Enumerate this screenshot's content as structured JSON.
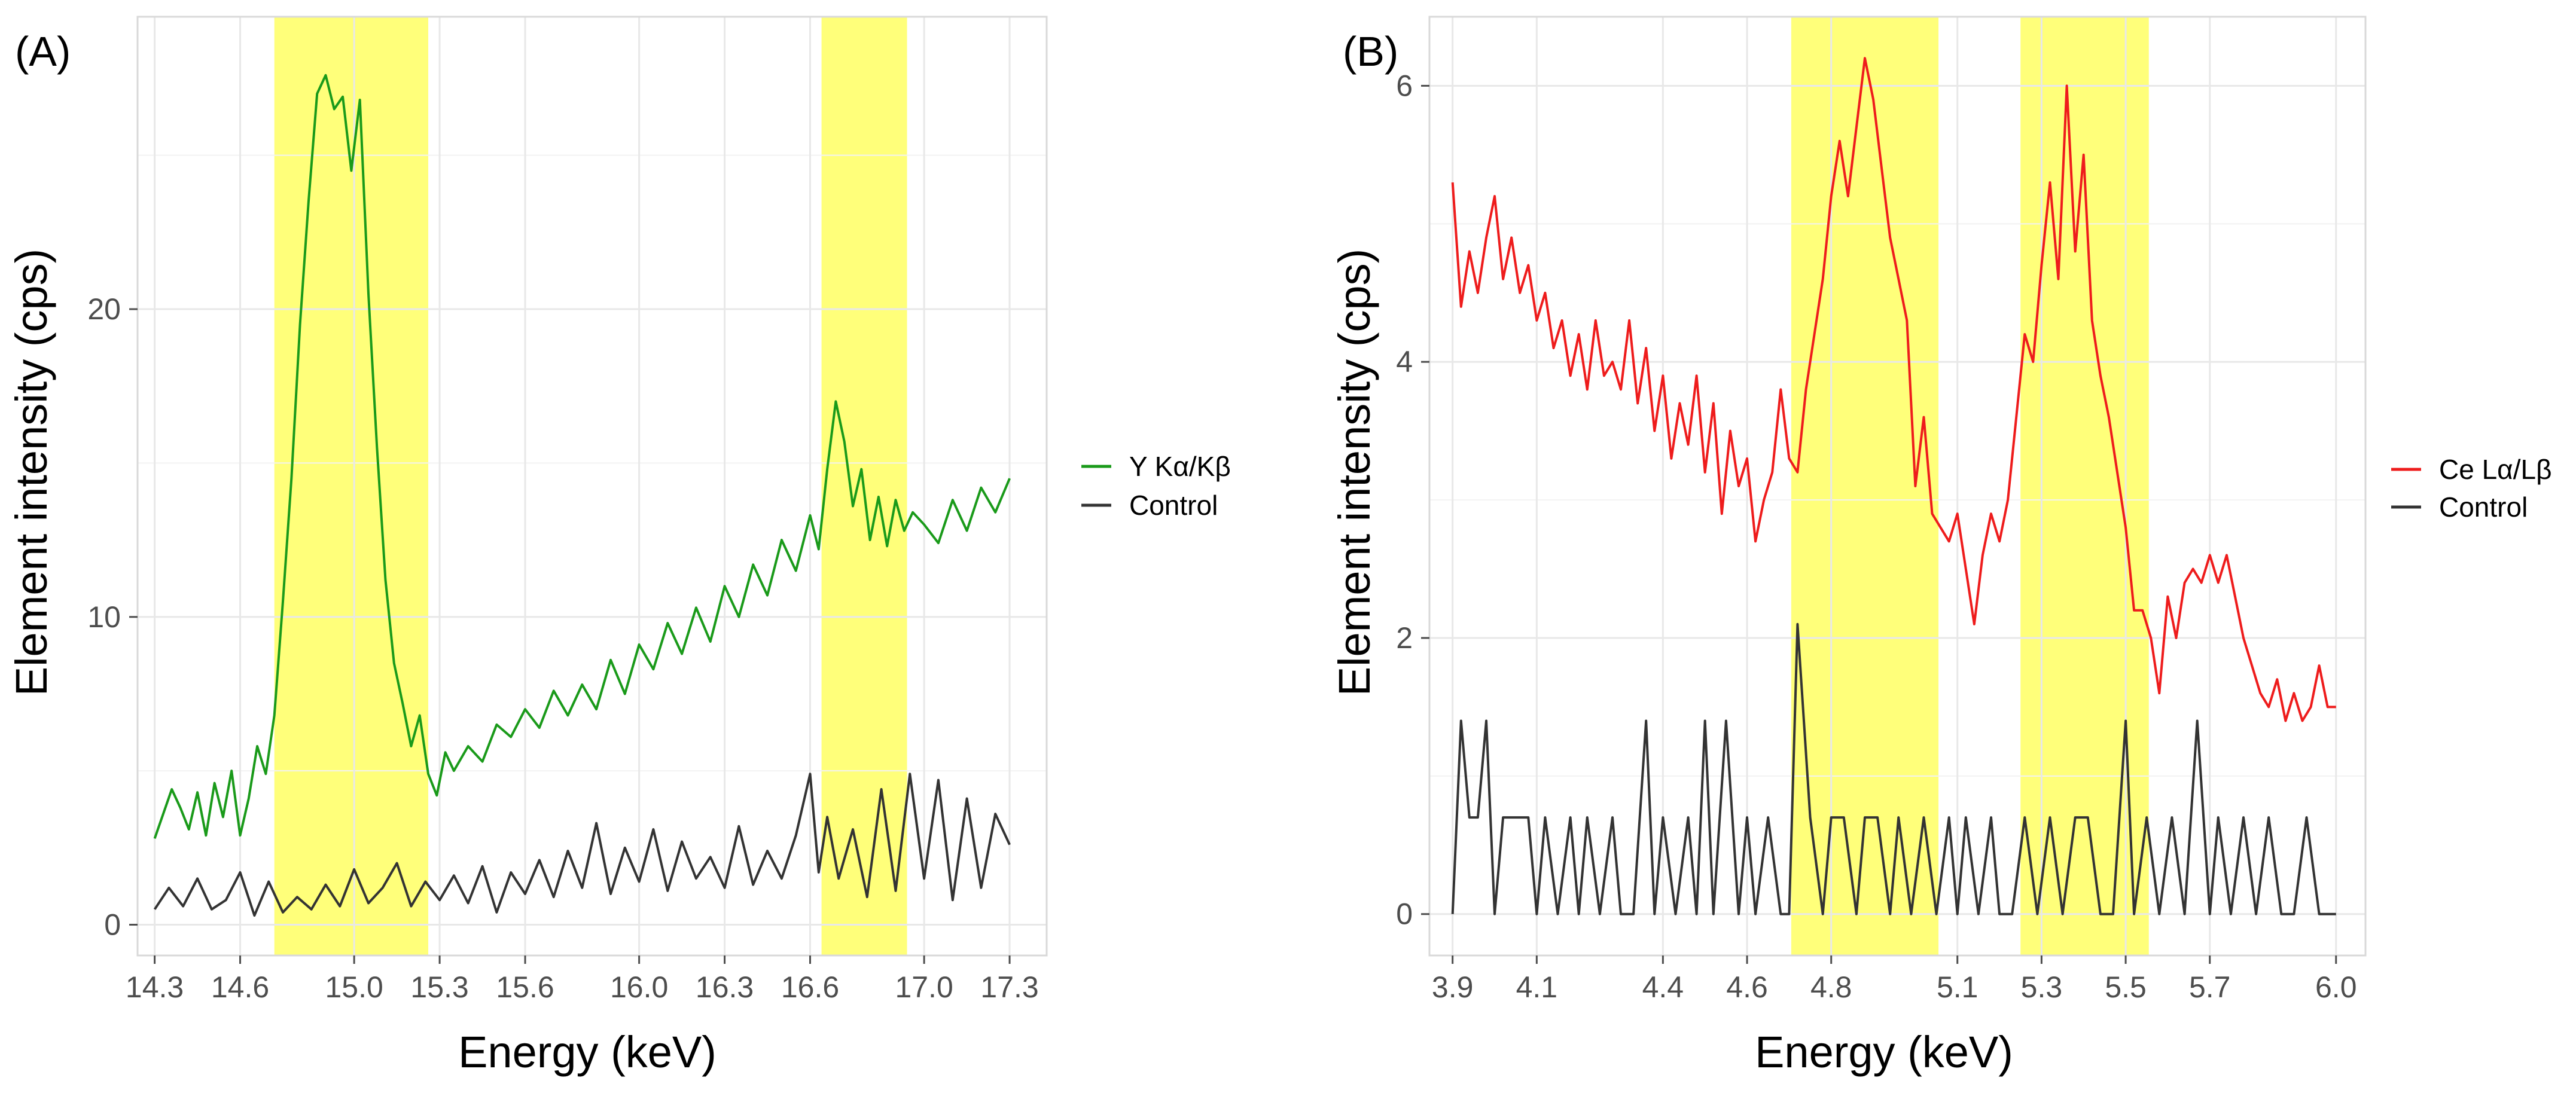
{
  "chart_data": [
    {
      "type": "line",
      "panel_label": "(A)",
      "xlabel": "Energy (keV)",
      "ylabel": "Element intensity (cps)",
      "xlim": [
        14.24,
        17.43
      ],
      "ylim": [
        -1.0,
        29.5
      ],
      "xticks": [
        14.3,
        14.6,
        15.0,
        15.3,
        15.6,
        16.0,
        16.3,
        16.6,
        17.0,
        17.3
      ],
      "xtick_labels": [
        "14.3",
        "14.6",
        "15.0",
        "15.3",
        "15.6",
        "16.0",
        "16.3",
        "16.6",
        "17.0",
        "17.3"
      ],
      "yticks": [
        0,
        10,
        20
      ],
      "ytick_labels": [
        "0",
        "10",
        "20"
      ],
      "highlight_bands": [
        [
          14.72,
          15.26
        ],
        [
          16.64,
          16.94
        ]
      ],
      "highlight_color": "#ffff7a",
      "legend_position": "right",
      "series": [
        {
          "name": "Y Kα/Kβ",
          "color": "#1a9a1a",
          "x": [
            14.3,
            14.33,
            14.36,
            14.39,
            14.42,
            14.45,
            14.48,
            14.51,
            14.54,
            14.57,
            14.6,
            14.63,
            14.66,
            14.69,
            14.72,
            14.75,
            14.78,
            14.81,
            14.84,
            14.87,
            14.9,
            14.93,
            14.96,
            14.99,
            15.02,
            15.05,
            15.08,
            15.11,
            15.14,
            15.17,
            15.2,
            15.23,
            15.26,
            15.29,
            15.32,
            15.35,
            15.4,
            15.45,
            15.5,
            15.55,
            15.6,
            15.65,
            15.7,
            15.75,
            15.8,
            15.85,
            15.9,
            15.95,
            16.0,
            16.05,
            16.1,
            16.15,
            16.2,
            16.25,
            16.3,
            16.35,
            16.4,
            16.45,
            16.5,
            16.55,
            16.6,
            16.63,
            16.66,
            16.69,
            16.72,
            16.75,
            16.78,
            16.81,
            16.84,
            16.87,
            16.9,
            16.93,
            16.96,
            17.0,
            17.05,
            17.1,
            17.15,
            17.2,
            17.25,
            17.3
          ],
          "values": [
            2.8,
            3.6,
            4.4,
            3.8,
            3.1,
            4.3,
            2.9,
            4.6,
            3.5,
            5.0,
            2.9,
            4.1,
            5.8,
            4.9,
            6.8,
            10.5,
            14.5,
            19.5,
            23.5,
            27.0,
            27.6,
            26.5,
            26.9,
            24.5,
            26.8,
            20.5,
            15.5,
            11.2,
            8.5,
            7.2,
            5.8,
            6.8,
            4.9,
            4.2,
            5.6,
            5.0,
            5.8,
            5.3,
            6.5,
            6.1,
            7.0,
            6.4,
            7.6,
            6.8,
            7.8,
            7.0,
            8.6,
            7.5,
            9.1,
            8.3,
            9.8,
            8.8,
            10.3,
            9.2,
            11.0,
            10.0,
            11.7,
            10.7,
            12.5,
            11.5,
            13.3,
            12.2,
            14.8,
            17.0,
            15.7,
            13.6,
            14.8,
            12.5,
            13.9,
            12.3,
            13.8,
            12.8,
            13.4,
            13.0,
            12.4,
            13.8,
            12.8,
            14.2,
            13.4,
            14.5
          ]
        },
        {
          "name": "Control",
          "color": "#333333",
          "x": [
            14.3,
            14.35,
            14.4,
            14.45,
            14.5,
            14.55,
            14.6,
            14.65,
            14.7,
            14.75,
            14.8,
            14.85,
            14.9,
            14.95,
            15.0,
            15.05,
            15.1,
            15.15,
            15.2,
            15.25,
            15.3,
            15.35,
            15.4,
            15.45,
            15.5,
            15.55,
            15.6,
            15.65,
            15.7,
            15.75,
            15.8,
            15.85,
            15.9,
            15.95,
            16.0,
            16.05,
            16.1,
            16.15,
            16.2,
            16.25,
            16.3,
            16.35,
            16.4,
            16.45,
            16.5,
            16.55,
            16.6,
            16.63,
            16.66,
            16.7,
            16.75,
            16.8,
            16.85,
            16.9,
            16.95,
            17.0,
            17.05,
            17.1,
            17.15,
            17.2,
            17.25,
            17.3
          ],
          "values": [
            0.5,
            1.2,
            0.6,
            1.5,
            0.5,
            0.8,
            1.7,
            0.3,
            1.4,
            0.4,
            0.9,
            0.5,
            1.3,
            0.6,
            1.8,
            0.7,
            1.2,
            2.0,
            0.6,
            1.4,
            0.8,
            1.6,
            0.7,
            1.9,
            0.4,
            1.7,
            1.0,
            2.1,
            0.9,
            2.4,
            1.2,
            3.3,
            1.0,
            2.5,
            1.4,
            3.1,
            1.1,
            2.7,
            1.5,
            2.2,
            1.2,
            3.2,
            1.3,
            2.4,
            1.5,
            2.9,
            4.9,
            1.7,
            3.5,
            1.5,
            3.1,
            0.9,
            4.4,
            1.1,
            4.9,
            1.5,
            4.7,
            0.8,
            4.1,
            1.2,
            3.6,
            2.6
          ]
        }
      ]
    },
    {
      "type": "line",
      "panel_label": "(B)",
      "xlabel": "Energy (keV)",
      "ylabel": "Element intensity (cps)",
      "xlim": [
        3.845,
        6.07
      ],
      "ylim": [
        -0.3,
        6.5
      ],
      "xticks": [
        3.9,
        4.1,
        4.4,
        4.6,
        4.8,
        5.1,
        5.3,
        5.5,
        5.7,
        6.0
      ],
      "xtick_labels": [
        "3.9",
        "4.1",
        "4.4",
        "4.6",
        "4.8",
        "5.1",
        "5.3",
        "5.5",
        "5.7",
        "6.0"
      ],
      "yticks": [
        0,
        2,
        4,
        6
      ],
      "ytick_labels": [
        "0",
        "2",
        "4",
        "6"
      ],
      "highlight_bands": [
        [
          4.705,
          5.055
        ],
        [
          5.25,
          5.555
        ]
      ],
      "highlight_color": "#ffff7a",
      "legend_position": "right",
      "series": [
        {
          "name": "Ce Lα/Lβ",
          "color": "#ee1c1c",
          "x": [
            3.9,
            3.92,
            3.94,
            3.96,
            3.98,
            4.0,
            4.02,
            4.04,
            4.06,
            4.08,
            4.1,
            4.12,
            4.14,
            4.16,
            4.18,
            4.2,
            4.22,
            4.24,
            4.26,
            4.28,
            4.3,
            4.32,
            4.34,
            4.36,
            4.38,
            4.4,
            4.42,
            4.44,
            4.46,
            4.48,
            4.5,
            4.52,
            4.54,
            4.56,
            4.58,
            4.6,
            4.62,
            4.64,
            4.66,
            4.68,
            4.7,
            4.72,
            4.74,
            4.76,
            4.78,
            4.8,
            4.82,
            4.84,
            4.86,
            4.88,
            4.9,
            4.92,
            4.94,
            4.96,
            4.98,
            5.0,
            5.02,
            5.04,
            5.06,
            5.08,
            5.1,
            5.12,
            5.14,
            5.16,
            5.18,
            5.2,
            5.22,
            5.24,
            5.26,
            5.28,
            5.3,
            5.32,
            5.34,
            5.36,
            5.38,
            5.4,
            5.42,
            5.44,
            5.46,
            5.48,
            5.5,
            5.52,
            5.54,
            5.56,
            5.58,
            5.6,
            5.62,
            5.64,
            5.66,
            5.68,
            5.7,
            5.72,
            5.74,
            5.76,
            5.78,
            5.8,
            5.82,
            5.84,
            5.86,
            5.88,
            5.9,
            5.92,
            5.94,
            5.96,
            5.98,
            6.0
          ],
          "values": [
            5.3,
            4.4,
            4.8,
            4.5,
            4.9,
            5.2,
            4.6,
            4.9,
            4.5,
            4.7,
            4.3,
            4.5,
            4.1,
            4.3,
            3.9,
            4.2,
            3.8,
            4.3,
            3.9,
            4.0,
            3.8,
            4.3,
            3.7,
            4.1,
            3.5,
            3.9,
            3.3,
            3.7,
            3.4,
            3.9,
            3.2,
            3.7,
            2.9,
            3.5,
            3.1,
            3.3,
            2.7,
            3.0,
            3.2,
            3.8,
            3.3,
            3.2,
            3.8,
            4.2,
            4.6,
            5.2,
            5.6,
            5.2,
            5.7,
            6.2,
            5.9,
            5.4,
            4.9,
            4.6,
            4.3,
            3.1,
            3.6,
            2.9,
            2.8,
            2.7,
            2.9,
            2.5,
            2.1,
            2.6,
            2.9,
            2.7,
            3.0,
            3.6,
            4.2,
            4.0,
            4.7,
            5.3,
            4.6,
            6.0,
            4.8,
            5.5,
            4.3,
            3.9,
            3.6,
            3.2,
            2.8,
            2.2,
            2.2,
            2.0,
            1.6,
            2.3,
            2.0,
            2.4,
            2.5,
            2.4,
            2.6,
            2.4,
            2.6,
            2.3,
            2.0,
            1.8,
            1.6,
            1.5,
            1.7,
            1.4,
            1.6,
            1.4,
            1.5,
            1.8,
            1.5,
            1.5
          ]
        },
        {
          "name": "Control",
          "color": "#333333",
          "x": [
            3.9,
            3.92,
            3.94,
            3.96,
            3.98,
            4.0,
            4.02,
            4.05,
            4.08,
            4.1,
            4.12,
            4.15,
            4.18,
            4.2,
            4.22,
            4.25,
            4.28,
            4.3,
            4.33,
            4.36,
            4.38,
            4.4,
            4.43,
            4.46,
            4.48,
            4.5,
            4.52,
            4.55,
            4.58,
            4.6,
            4.62,
            4.65,
            4.68,
            4.7,
            4.72,
            4.75,
            4.78,
            4.8,
            4.83,
            4.86,
            4.88,
            4.91,
            4.94,
            4.96,
            4.99,
            5.02,
            5.05,
            5.08,
            5.1,
            5.12,
            5.15,
            5.18,
            5.2,
            5.23,
            5.26,
            5.29,
            5.32,
            5.35,
            5.38,
            5.41,
            5.44,
            5.47,
            5.5,
            5.52,
            5.55,
            5.58,
            5.61,
            5.64,
            5.67,
            5.7,
            5.72,
            5.75,
            5.78,
            5.81,
            5.84,
            5.87,
            5.9,
            5.93,
            5.96,
            6.0
          ],
          "values": [
            0.0,
            1.4,
            0.7,
            0.7,
            1.4,
            0.0,
            0.7,
            0.7,
            0.7,
            0.0,
            0.7,
            0.0,
            0.7,
            0.0,
            0.7,
            0.0,
            0.7,
            0.0,
            0.0,
            1.4,
            0.0,
            0.7,
            0.0,
            0.7,
            0.0,
            1.4,
            0.0,
            1.4,
            0.0,
            0.7,
            0.0,
            0.7,
            0.0,
            0.0,
            2.1,
            0.7,
            0.0,
            0.7,
            0.7,
            0.0,
            0.7,
            0.7,
            0.0,
            0.7,
            0.0,
            0.7,
            0.0,
            0.7,
            0.0,
            0.7,
            0.0,
            0.7,
            0.0,
            0.0,
            0.7,
            0.0,
            0.7,
            0.0,
            0.7,
            0.7,
            0.0,
            0.0,
            1.4,
            0.0,
            0.7,
            0.0,
            0.7,
            0.0,
            1.4,
            0.0,
            0.7,
            0.0,
            0.7,
            0.0,
            0.7,
            0.0,
            0.0,
            0.7,
            0.0,
            0.0
          ]
        }
      ]
    }
  ]
}
